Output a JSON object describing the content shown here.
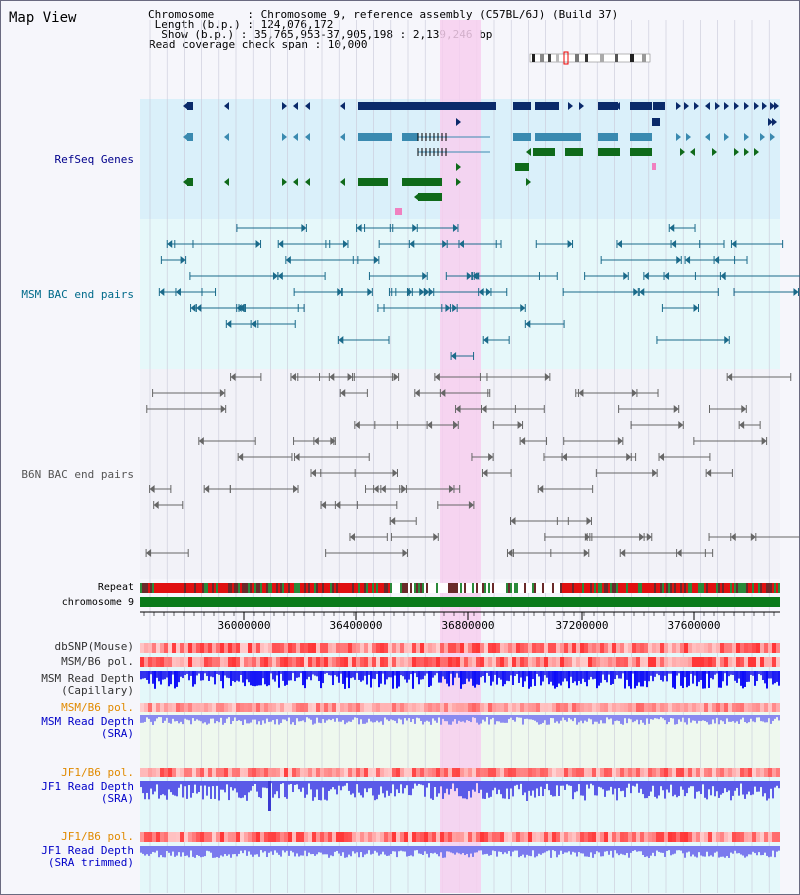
{
  "title": "Map View",
  "info": {
    "chromosome": "Chromosome     : Chromosome 9, reference assembly (C57BL/6J) (Build 37)",
    "length": " Length (b.p.) : 124,076,172",
    "show": "  Show (b.p.) : 35,765,953-37,905,198 : 2,139,246 bp",
    "span": "Read coverage check span : 10,000"
  },
  "tracks": {
    "refseq": "RefSeq Genes",
    "msm_bac": "MSM BAC end pairs",
    "b6n_bac": "B6N BAC end pairs",
    "repeat": "Repeat",
    "chromosome": "chromosome 9",
    "dbsnp": "dbSNP(Mouse)",
    "msm_b6_pol": "MSM/B6 pol.",
    "msm_depth_cap": "MSM Read Depth\n(Capillary)",
    "msm_b6_pol2": "MSM/B6 pol.",
    "msm_depth_sra": "MSM Read Depth\n(SRA)",
    "jf1_b6_pol": "JF1/B6 pol.",
    "jf1_depth_sra": "JF1 Read Depth\n(SRA)",
    "jf1_b6_pol2": "JF1/B6 pol.",
    "jf1_depth_trim": "JF1 Read Depth\n(SRA trimmed)"
  },
  "axis": {
    "ticks": [
      "36000000",
      "36400000",
      "36800000",
      "37200000",
      "37600000"
    ]
  },
  "colors": {
    "refseq_label": "#00008b",
    "msm_label": "#006a8a",
    "b6n_label": "#555555",
    "orange_label": "#e08a00",
    "blue_label": "#0000c8",
    "highlight": "#f7cfef"
  }
}
